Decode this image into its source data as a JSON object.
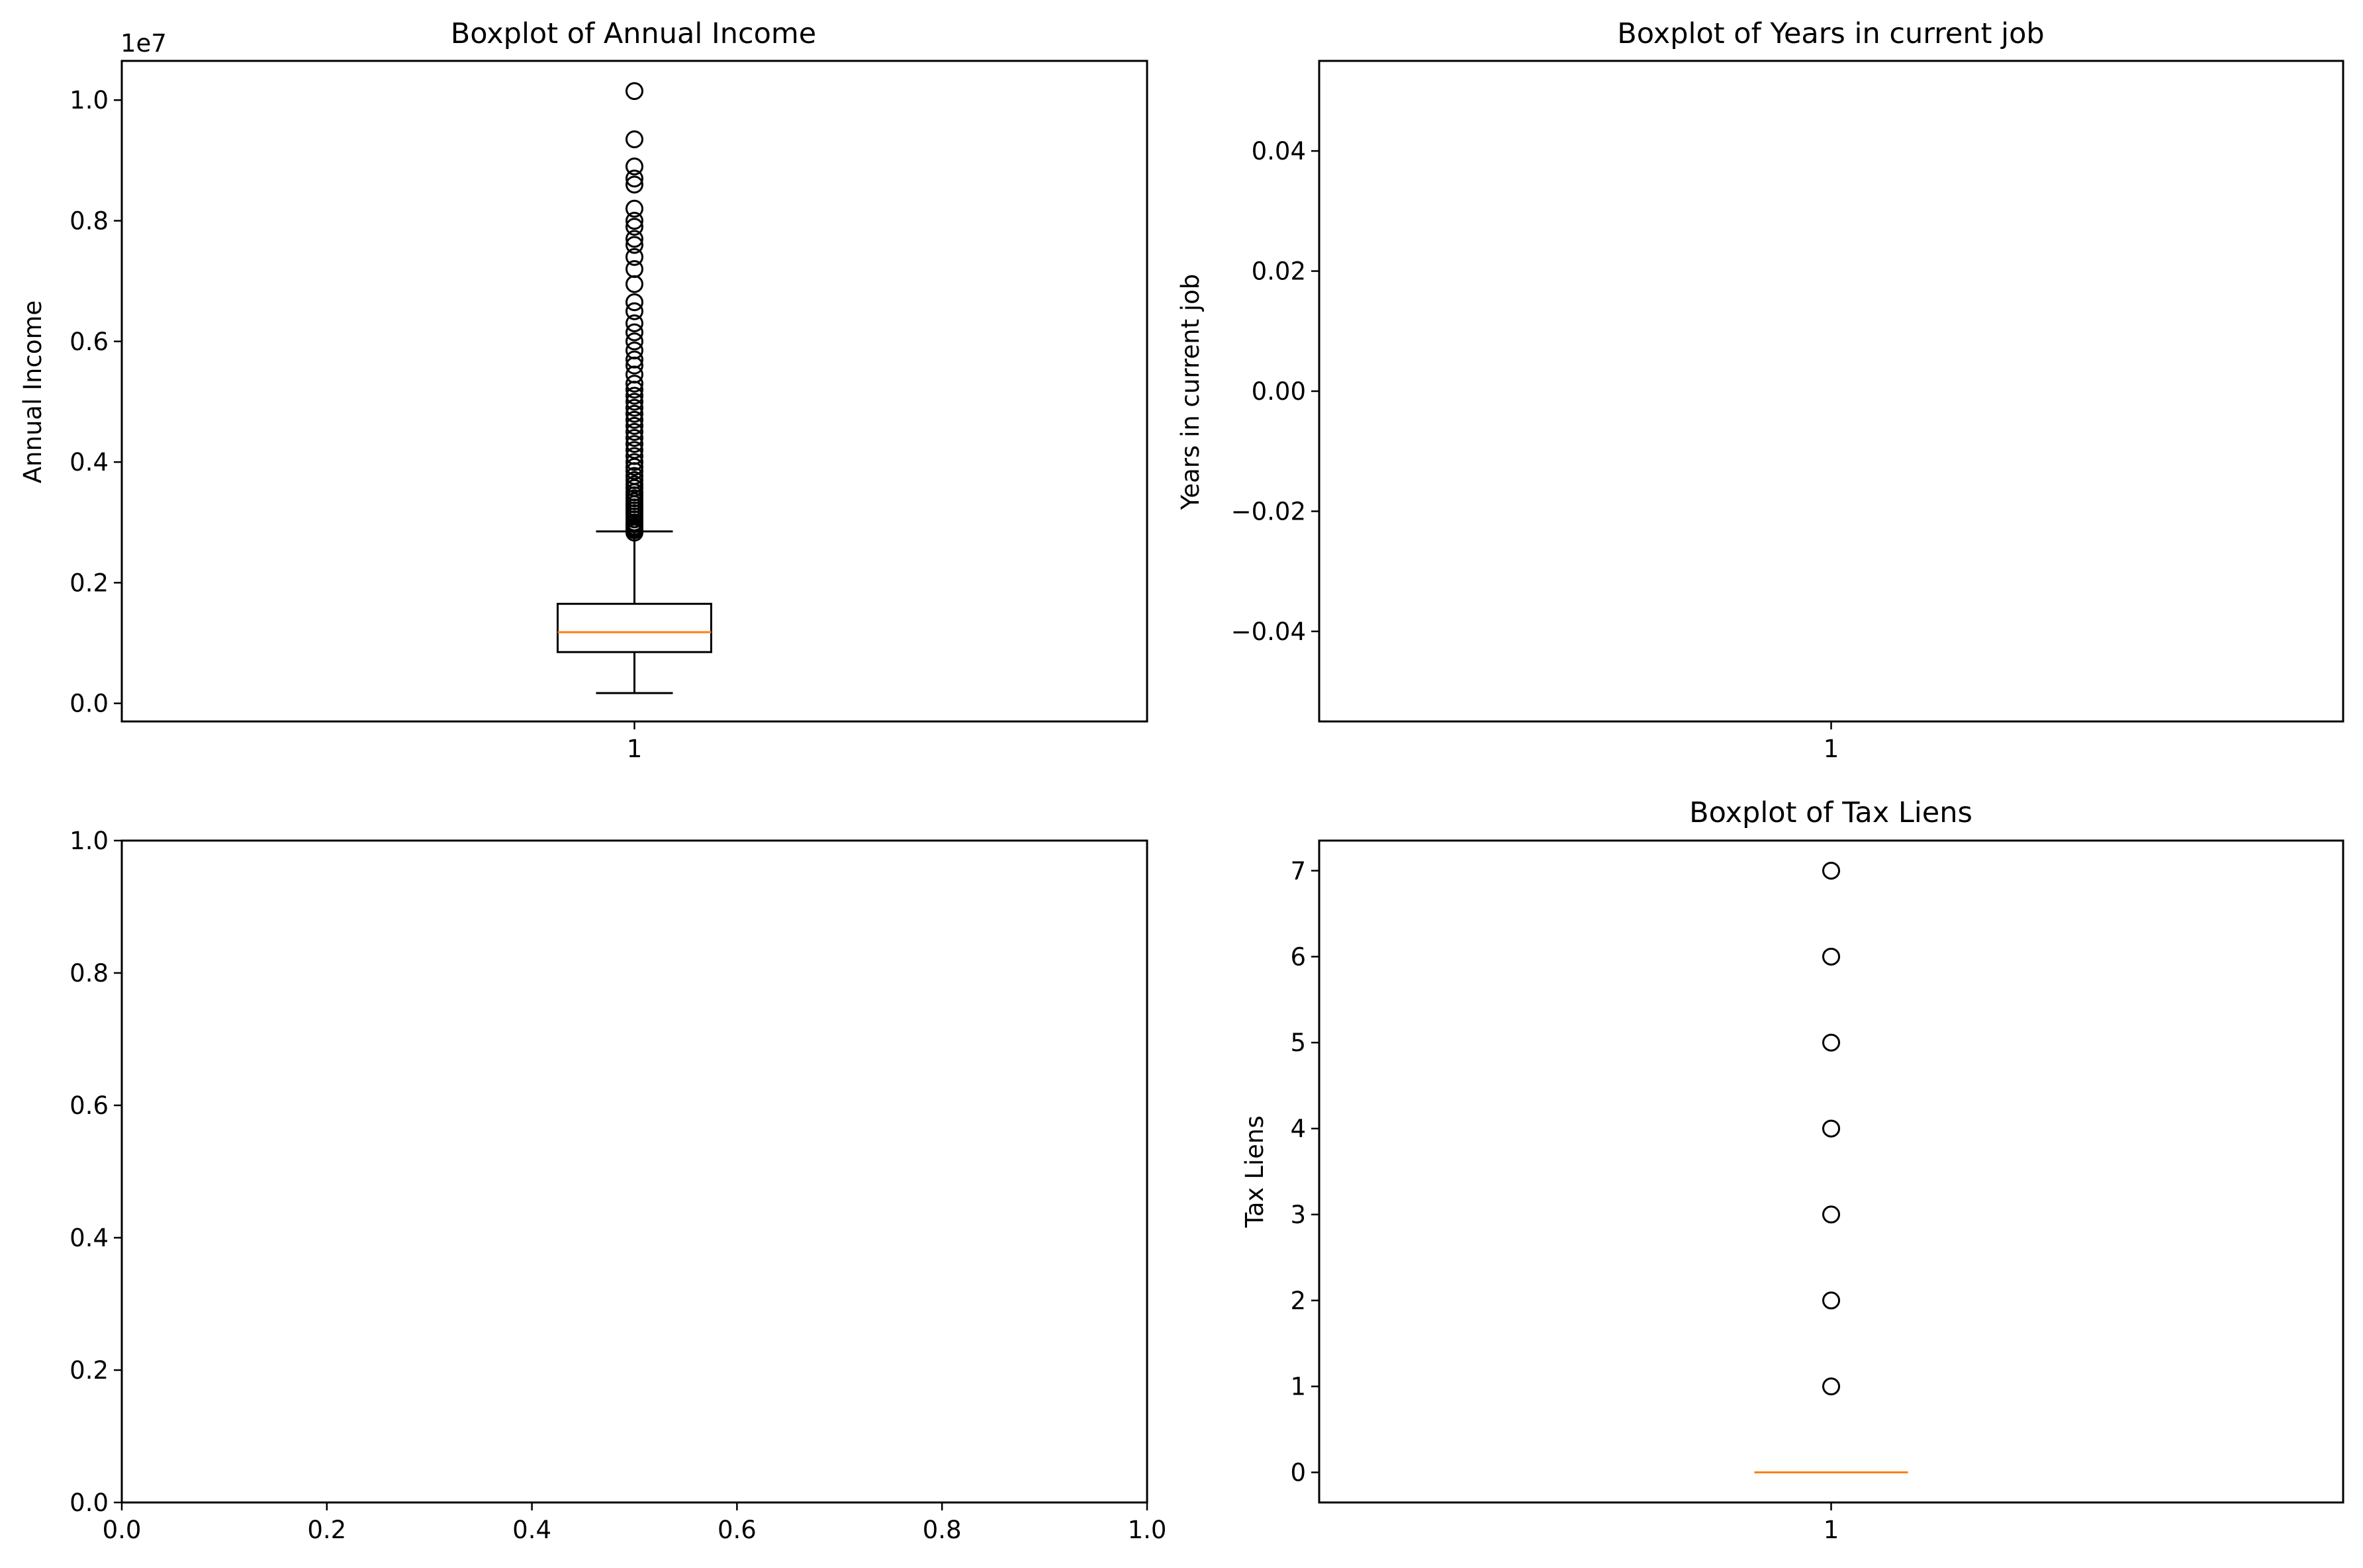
{
  "colors": {
    "axes": "#000000",
    "median": "#ff7f0e",
    "background": "#ffffff"
  },
  "chart_data": [
    {
      "type": "box",
      "title": "Boxplot of Annual Income",
      "xlabel": "",
      "ylabel": "Annual Income",
      "offset_label": "1e7",
      "xticks": [
        "1"
      ],
      "ylim": [
        -0.03,
        1.065
      ],
      "yticks": [
        0.0,
        0.2,
        0.4,
        0.6,
        0.8,
        1.0
      ],
      "ytick_labels": [
        "0.0",
        "0.2",
        "0.4",
        "0.6",
        "0.8",
        "1.0"
      ],
      "box": {
        "whisker_low": 0.017,
        "q1": 0.085,
        "median": 0.118,
        "q3": 0.165,
        "whisker_high": 0.285
      },
      "outliers": [
        0.283,
        0.287,
        0.29,
        0.293,
        0.297,
        0.3,
        0.305,
        0.31,
        0.315,
        0.32,
        0.325,
        0.33,
        0.335,
        0.34,
        0.345,
        0.35,
        0.357,
        0.363,
        0.37,
        0.377,
        0.385,
        0.392,
        0.4,
        0.41,
        0.42,
        0.43,
        0.44,
        0.45,
        0.46,
        0.47,
        0.48,
        0.49,
        0.5,
        0.51,
        0.52,
        0.53,
        0.545,
        0.56,
        0.57,
        0.585,
        0.6,
        0.615,
        0.63,
        0.65,
        0.665,
        0.695,
        0.72,
        0.74,
        0.76,
        0.77,
        0.79,
        0.8,
        0.82,
        0.86,
        0.87,
        0.89,
        0.935,
        1.015
      ]
    },
    {
      "type": "box",
      "title": "Boxplot of Years in current job",
      "xlabel": "",
      "ylabel": "Years in current job",
      "xticks": [
        "1"
      ],
      "ylim": [
        -0.055,
        0.055
      ],
      "yticks": [
        -0.04,
        -0.02,
        0.0,
        0.02,
        0.04
      ],
      "ytick_labels": [
        "−0.04",
        "−0.02",
        "0.00",
        "0.02",
        "0.04"
      ],
      "box": null,
      "outliers": []
    },
    {
      "type": "empty",
      "title": "",
      "xlabel": "",
      "ylabel": "",
      "xlim": [
        0,
        1
      ],
      "ylim": [
        0,
        1
      ],
      "xticks": [
        0.0,
        0.2,
        0.4,
        0.6,
        0.8,
        1.0
      ],
      "xtick_labels": [
        "0.0",
        "0.2",
        "0.4",
        "0.6",
        "0.8",
        "1.0"
      ],
      "yticks": [
        0.0,
        0.2,
        0.4,
        0.6,
        0.8,
        1.0
      ],
      "ytick_labels": [
        "0.0",
        "0.2",
        "0.4",
        "0.6",
        "0.8",
        "1.0"
      ]
    },
    {
      "type": "box",
      "title": "Boxplot of Tax Liens",
      "xlabel": "",
      "ylabel": "Tax Liens",
      "xticks": [
        "1"
      ],
      "ylim": [
        -0.35,
        7.35
      ],
      "yticks": [
        0,
        1,
        2,
        3,
        4,
        5,
        6,
        7
      ],
      "ytick_labels": [
        "0",
        "1",
        "2",
        "3",
        "4",
        "5",
        "6",
        "7"
      ],
      "box": {
        "whisker_low": 0,
        "q1": 0,
        "median": 0,
        "q3": 0,
        "whisker_high": 0
      },
      "outliers": [
        1,
        2,
        3,
        4,
        5,
        6,
        7
      ]
    }
  ]
}
